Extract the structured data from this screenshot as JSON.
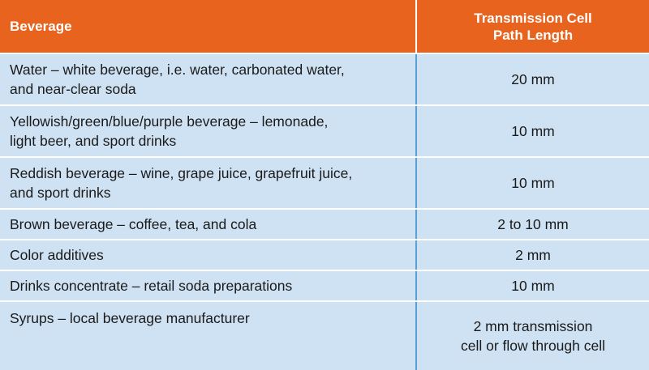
{
  "columns": [
    "Beverage",
    "Transmission Cell\nPath Length"
  ],
  "header": {
    "col1": "Beverage",
    "col2_line1": "Transmission Cell",
    "col2_line2": "Path Length"
  },
  "rows": [
    {
      "beverage_line1": "Water – white beverage, i.e. water, carbonated water,",
      "beverage_line2": "and near-clear soda",
      "path_line1": "20 mm",
      "path_line2": ""
    },
    {
      "beverage_line1": "Yellowish/green/blue/purple beverage – lemonade,",
      "beverage_line2": "light beer, and sport drinks",
      "path_line1": "10 mm",
      "path_line2": ""
    },
    {
      "beverage_line1": "Reddish beverage – wine, grape juice, grapefruit juice,",
      "beverage_line2": "and sport drinks",
      "path_line1": "10 mm",
      "path_line2": ""
    },
    {
      "beverage_line1": "Brown beverage – coffee, tea, and cola",
      "beverage_line2": "",
      "path_line1": "2 to 10 mm",
      "path_line2": ""
    },
    {
      "beverage_line1": "Color additives",
      "beverage_line2": "",
      "path_line1": "2 mm",
      "path_line2": ""
    },
    {
      "beverage_line1": "Drinks concentrate – retail soda preparations",
      "beverage_line2": "",
      "path_line1": "10 mm",
      "path_line2": ""
    },
    {
      "beverage_line1": "Syrups – local beverage manufacturer",
      "beverage_line2": "",
      "path_line1": "2 mm transmission",
      "path_line2": "cell or flow through cell"
    }
  ],
  "colors": {
    "header_bg": "#e8641e",
    "row_bg": "#cfe2f3",
    "divider": "#5aa0d6"
  }
}
